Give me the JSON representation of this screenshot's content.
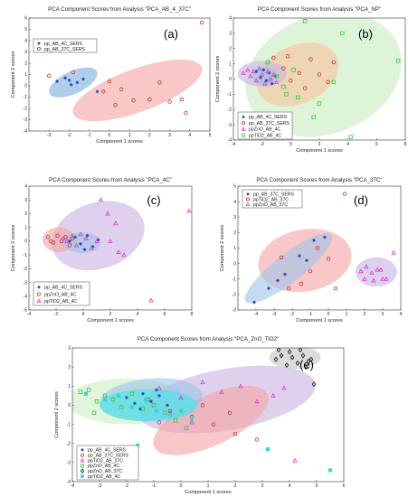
{
  "chart_data": [
    {
      "type": "scatter",
      "title": "PCA Component Scores from Analysis \"PCA_AB_4_37C\"",
      "panel_label": "(a)",
      "xlabel": "Component 1 scores",
      "ylabel": "Component 2 scores",
      "xlim": [
        -4,
        5
      ],
      "ylim": [
        -4,
        6
      ],
      "xticks": [
        -3,
        -2,
        -1,
        0,
        1,
        2,
        3,
        4,
        5
      ],
      "yticks": [
        -4,
        -3,
        -2,
        -1,
        0,
        1,
        2,
        3,
        4,
        5,
        6
      ],
      "legend_position": "top-left",
      "series": [
        {
          "name": "pp_AB_4C_SERS",
          "marker": "asterisk",
          "color": "#2a3fb0",
          "x": [
            -2.6,
            -2.2,
            -1.9,
            -1.6,
            -1.3,
            -0.6,
            -2.0
          ],
          "y": [
            0.4,
            0.7,
            0.1,
            0.3,
            0.6,
            -0.5,
            0.5
          ]
        },
        {
          "name": "pp_AB_37C_SERS",
          "marker": "circle",
          "color": "#c0392b",
          "x": [
            4.6,
            -3.0,
            -1.8,
            0.0,
            0.6,
            1.2,
            2.0,
            2.5,
            3.0,
            3.6,
            3.8,
            -0.3,
            0.3
          ],
          "y": [
            5.6,
            0.9,
            1.2,
            0.4,
            -0.3,
            -1.3,
            -1.2,
            0.3,
            -1.4,
            -1.2,
            -2.4,
            -0.5,
            -1.7
          ]
        }
      ],
      "ellipses": [
        {
          "name": "pp_AB_4C_SERS",
          "color": "#7aaedc",
          "cx": -1.8,
          "cy": 0.3,
          "rx": 1.3,
          "ry": 1.0,
          "angle": -25
        },
        {
          "name": "pp_AB_37C_SERS",
          "color": "#f5a2a2",
          "cx": 1.4,
          "cy": -0.4,
          "rx": 3.4,
          "ry": 1.9,
          "angle": -20
        }
      ]
    },
    {
      "type": "scatter",
      "title": "PCA Component Scores from Analysis \"PCA_NP\"",
      "panel_label": "(b)",
      "xlabel": "Component 1 scores",
      "ylabel": "Component 2 scores",
      "xlim": [
        -4,
        8
      ],
      "ylim": [
        -4,
        4
      ],
      "xticks": [
        -4,
        -2,
        0,
        2,
        4,
        6,
        8
      ],
      "yticks": [
        -4,
        -3,
        -2,
        -1,
        0,
        1,
        2,
        3,
        4
      ],
      "legend_position": "bottom-left",
      "series": [
        {
          "name": "pp_AB_4C_SERS",
          "marker": "asterisk",
          "color": "#2a3fb0",
          "x": [
            -2.4,
            -2.1,
            -1.9,
            -1.7,
            -1.5,
            -1.3,
            -1.1
          ],
          "y": [
            0.5,
            0.1,
            0.6,
            -0.1,
            0.4,
            -0.3,
            0.2
          ]
        },
        {
          "name": "pp_AB_37C_SERS",
          "marker": "circle",
          "color": "#c0392b",
          "x": [
            -1.2,
            -0.5,
            0.0,
            0.6,
            1.4,
            2.0,
            2.6,
            3.0,
            -0.2,
            1.0
          ],
          "y": [
            1.4,
            0.7,
            -0.1,
            0.4,
            1.3,
            0.3,
            -0.2,
            1.1,
            1.5,
            -0.6
          ]
        },
        {
          "name": "ppZnO_AB_4C",
          "marker": "triangle",
          "color": "#d63bd0",
          "x": [
            -3.3,
            -3.0,
            -2.8,
            -2.6,
            -2.4,
            -2.2,
            -2.0,
            -1.8,
            -1.6,
            -1.4,
            -1.2,
            -1.0
          ],
          "y": [
            0.4,
            0.6,
            0.2,
            0.5,
            -0.1,
            0.7,
            0.3,
            -0.3,
            0.5,
            0.0,
            0.3,
            -0.2
          ]
        },
        {
          "name": "ppTiO2_AB_4C",
          "marker": "square",
          "color": "#33cc33",
          "x": [
            1.0,
            3.6,
            7.5,
            -0.3,
            -1.0,
            -1.6,
            -0.5,
            0.5,
            2.0,
            3.0,
            4.2,
            1.6,
            0.2
          ],
          "y": [
            3.8,
            3.0,
            1.2,
            -1.0,
            0.2,
            1.1,
            -0.5,
            -1.2,
            -1.6,
            -0.2,
            -3.8,
            -2.5,
            0.6
          ]
        }
      ],
      "ellipses": [
        {
          "name": "ppTiO2_AB_4C",
          "color": "#c8ecc0",
          "cx": 2.3,
          "cy": 0.3,
          "rx": 5.6,
          "ry": 3.9,
          "angle": -20
        },
        {
          "name": "pp_AB_37C_SERS",
          "color": "#f8c09a",
          "cx": 0.5,
          "cy": 0.3,
          "rx": 3.0,
          "ry": 1.9,
          "angle": -25
        },
        {
          "name": "ppZnO_AB_4C",
          "color": "#c9b3e3",
          "cx": -2.0,
          "cy": 0.35,
          "rx": 1.7,
          "ry": 0.85,
          "angle": 0
        },
        {
          "name": "pp_AB_4C_SERS",
          "color": "#9cc3e8",
          "cx": -1.8,
          "cy": 0.2,
          "rx": 0.8,
          "ry": 0.6,
          "angle": 0
        }
      ]
    },
    {
      "type": "scatter",
      "title": "PCA Component Scores from Analysis \"PCA_4C\"",
      "panel_label": "(c)",
      "xlabel": "Component 1 scores",
      "ylabel": "Component 2 scores",
      "xlim": [
        -4,
        8
      ],
      "ylim": [
        -5,
        4
      ],
      "xticks": [
        -4,
        -2,
        0,
        2,
        4,
        6,
        8
      ],
      "yticks": [
        -5,
        -4,
        -3,
        -2,
        -1,
        0,
        1,
        2,
        3,
        4
      ],
      "legend_position": "bottom-left",
      "series": [
        {
          "name": "pp_AB_4C_SERS",
          "marker": "asterisk",
          "color": "#2a3fb0",
          "x": [
            -0.6,
            -0.2,
            0.3,
            0.7,
            1.1,
            -1.0,
            0.1
          ],
          "y": [
            0.3,
            -0.2,
            0.4,
            -0.4,
            0.1,
            0.0,
            -0.6
          ]
        },
        {
          "name": "ppZnO_AB_4C",
          "marker": "circle",
          "color": "#c0392b",
          "x": [
            -2.6,
            -2.2,
            -1.9,
            -1.6,
            -1.3,
            -1.0,
            -0.8,
            -2.4
          ],
          "y": [
            0.3,
            -0.1,
            0.4,
            0.0,
            0.3,
            -0.3,
            0.2,
            0.0
          ]
        },
        {
          "name": "ppTiO2_AB_4C",
          "marker": "triangle",
          "color": "#d63bd0",
          "x": [
            1.3,
            1.8,
            2.4,
            2.0,
            3.0,
            7.8,
            5.0,
            -1.5,
            -1.2,
            -0.8,
            -0.5,
            -0.2,
            0.2,
            0.6,
            1.0,
            2.6
          ],
          "y": [
            3.0,
            2.0,
            1.3,
            0.0,
            -1.0,
            2.2,
            -4.3,
            0.2,
            0.0,
            0.4,
            -0.3,
            0.5,
            0.2,
            -0.5,
            0.0,
            -0.8
          ]
        }
      ],
      "ellipses": [
        {
          "name": "ppTiO2_AB_4C",
          "color": "#c9b3e3",
          "cx": 1.1,
          "cy": 0.4,
          "rx": 3.5,
          "ry": 2.4,
          "angle": -18
        },
        {
          "name": "ppZnO_AB_4C",
          "color": "#f5a2a2",
          "cx": -1.8,
          "cy": 0.1,
          "rx": 1.2,
          "ry": 0.9,
          "angle": 0
        },
        {
          "name": "pp_AB_4C_SERS",
          "color": "#9cc3e8",
          "cx": -0.1,
          "cy": -0.1,
          "rx": 1.4,
          "ry": 0.75,
          "angle": 0
        }
      ]
    },
    {
      "type": "scatter",
      "title": "PCA Component Scores from Analysis \"PCA_37C\"",
      "panel_label": "(d)",
      "xlabel": "Component 1 scores",
      "ylabel": "Component 2 scores",
      "xlim": [
        -5,
        4
      ],
      "ylim": [
        -3,
        5
      ],
      "xticks": [
        -4,
        -3,
        -2,
        -1,
        0,
        1,
        2,
        3,
        4
      ],
      "yticks": [
        -3,
        -2,
        -1,
        0,
        1,
        2,
        3,
        4,
        5
      ],
      "legend_position": "top-left",
      "series": [
        {
          "name": "pp_AB_37C_SERS",
          "marker": "asterisk",
          "color": "#2a3fb0",
          "x": [
            -4.1,
            -3.3,
            -2.4,
            -1.6,
            -0.8,
            -0.2,
            -2.8,
            -1.2
          ],
          "y": [
            -2.5,
            -1.6,
            -0.7,
            0.5,
            1.5,
            1.7,
            -1.1,
            0.2
          ]
        },
        {
          "name": "ppTiO2_AB_37C",
          "marker": "circle",
          "color": "#c0392b",
          "x": [
            0.9,
            -2.2,
            -1.5,
            -0.6,
            0.0,
            0.4,
            -1.0,
            -2.6
          ],
          "y": [
            4.5,
            -1.6,
            -1.3,
            1.0,
            0.3,
            -1.6,
            -0.5,
            0.4
          ]
        },
        {
          "name": "ppZnO_AB_37C",
          "marker": "triangle",
          "color": "#d63bd0",
          "x": [
            1.8,
            2.1,
            2.4,
            2.7,
            3.0,
            3.6,
            2.0,
            2.5,
            2.9,
            3.2
          ],
          "y": [
            -0.5,
            -0.2,
            -0.6,
            -0.4,
            -1.0,
            0.7,
            -1.0,
            -1.1,
            -0.4,
            -1.0
          ]
        }
      ],
      "ellipses": [
        {
          "name": "ppTiO2_AB_37C",
          "color": "#f5a2a2",
          "cx": -1.3,
          "cy": 0.2,
          "rx": 2.6,
          "ry": 2.0,
          "angle": -10
        },
        {
          "name": "pp_AB_37C_SERS",
          "color": "#9cc3e8",
          "cx": -2.2,
          "cy": -0.3,
          "rx": 3.0,
          "ry": 0.9,
          "angle": -38
        },
        {
          "name": "ppZnO_AB_37C",
          "color": "#c9b3e3",
          "cx": 2.65,
          "cy": -0.55,
          "rx": 1.15,
          "ry": 0.95,
          "angle": 0
        }
      ]
    },
    {
      "type": "scatter",
      "title": "PCA Component Scores from Analysis \"PCA_ZnO_TiO2\"",
      "panel_label": "(e)",
      "xlabel": "Component 1 scores",
      "ylabel": "Component 2 scores",
      "xlim": [
        -4,
        6
      ],
      "ylim": [
        -4,
        3
      ],
      "xticks": [
        -4,
        -3,
        -2,
        -1,
        0,
        1,
        2,
        3,
        4,
        5,
        6
      ],
      "yticks": [
        -4,
        -3,
        -2,
        -1,
        0,
        1,
        2,
        3
      ],
      "legend_position": "bottom-left",
      "series": [
        {
          "name": "pp_AB_4C_SERS",
          "marker": "asterisk",
          "color": "#2a3fb0",
          "x": [
            -2.0,
            -1.7,
            -1.4,
            -1.1,
            -0.8,
            -0.5,
            -1.5,
            -0.9
          ],
          "y": [
            0.4,
            0.1,
            0.6,
            0.2,
            0.5,
            0.0,
            -0.2,
            0.8
          ]
        },
        {
          "name": "pp_AB_37C_SERS",
          "marker": "circle",
          "color": "#c0392b",
          "x": [
            -1.2,
            -0.4,
            0.4,
            1.2,
            2.0,
            2.8,
            0.8,
            -0.8,
            1.8
          ],
          "y": [
            0.3,
            -0.3,
            -0.6,
            -1.0,
            -1.5,
            -1.8,
            0.0,
            -0.9,
            -0.4
          ]
        },
        {
          "name": "ppTiO2_AB_37C",
          "marker": "triangle",
          "color": "#d63bd0",
          "x": [
            -0.8,
            0.0,
            0.8,
            1.5,
            2.2,
            2.8,
            3.4,
            3.8,
            4.2,
            0.4,
            -0.4
          ],
          "y": [
            0.9,
            0.4,
            1.2,
            0.7,
            1.0,
            0.2,
            0.5,
            0.9,
            -2.9,
            -0.9,
            -0.4
          ]
        },
        {
          "name": "ppZnO_AB_4C",
          "marker": "square",
          "color": "#33cc33",
          "x": [
            -3.7,
            -3.4,
            -3.1,
            -2.8,
            -2.5,
            -2.2,
            -1.8,
            -1.4,
            -1.0,
            -0.6,
            -2.9,
            -3.2,
            -0.2,
            0.2
          ],
          "y": [
            0.7,
            0.8,
            0.2,
            0.5,
            0.3,
            -0.1,
            0.6,
            -0.2,
            0.0,
            -0.4,
            -2.3,
            -0.4,
            -0.8,
            -1.2
          ]
        },
        {
          "name": "ppZnO_AB_37C",
          "marker": "diamond",
          "color": "#111111",
          "x": [
            3.5,
            3.7,
            3.9,
            4.1,
            4.3,
            4.5,
            4.7,
            3.6,
            4.0,
            4.4,
            4.6,
            4.8,
            4.9
          ],
          "y": [
            2.4,
            2.6,
            2.1,
            2.5,
            2.2,
            2.6,
            2.3,
            2.9,
            2.8,
            2.9,
            2.0,
            2.4,
            1.1
          ]
        },
        {
          "name": "ppTiO2_AB_4C",
          "marker": "square_filled",
          "color": "#33d6d6",
          "x": [
            -3.5,
            -2.8,
            -2.3,
            -1.8,
            -1.3,
            -0.9,
            -0.4,
            0.0,
            0.4,
            5.5,
            3.2,
            -1.6
          ],
          "y": [
            0.6,
            0.3,
            0.5,
            -0.1,
            0.3,
            -0.3,
            -0.5,
            -0.3,
            -0.7,
            -3.4,
            -2.3,
            -2.1
          ]
        }
      ],
      "ellipses": [
        {
          "name": "ppZnO_AB_4C",
          "color": "#cdedc5",
          "cx": -2.0,
          "cy": 0.2,
          "rx": 2.2,
          "ry": 1.2,
          "angle": 0
        },
        {
          "name": "ppTiO2_AB_37C",
          "color": "#c9b3e3",
          "cx": 1.7,
          "cy": 0.3,
          "rx": 3.3,
          "ry": 1.6,
          "angle": -10
        },
        {
          "name": "pp_AB_37C_SERS",
          "color": "#f5a2a2",
          "cx": 1.1,
          "cy": -0.8,
          "rx": 2.3,
          "ry": 1.3,
          "angle": -25
        },
        {
          "name": "pp_AB_4C_SERS",
          "color": "#9cc3e8",
          "cx": -1.1,
          "cy": 0.3,
          "rx": 1.9,
          "ry": 1.1,
          "angle": -5
        },
        {
          "name": "ppTiO2_AB_4C",
          "color": "#3fe6e6",
          "cx": -1.2,
          "cy": 0.0,
          "rx": 1.8,
          "ry": 0.85,
          "angle": 0
        },
        {
          "name": "ppZnO_AB_37C",
          "color": "#c4c4c4",
          "cx": 4.2,
          "cy": 2.5,
          "rx": 0.95,
          "ry": 0.6,
          "angle": 0
        }
      ]
    }
  ]
}
